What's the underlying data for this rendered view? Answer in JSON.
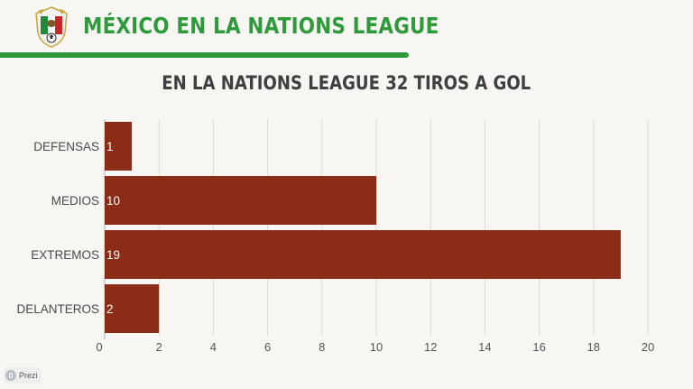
{
  "header": {
    "title": "MÉXICO EN LA NATIONS LEAGUE",
    "brand_color": "#2f9a3c"
  },
  "logo": {
    "icon": "mexico-federation-crest-icon"
  },
  "footer": {
    "prezi_label": "Prezi",
    "icon": "prezi-icon"
  },
  "chart_data": {
    "type": "bar",
    "orientation": "horizontal",
    "title": "EN LA NATIONS LEAGUE 32 TIROS A GOL",
    "categories": [
      "DEFENSAS",
      "MEDIOS",
      "EXTREMOS",
      "DELANTEROS"
    ],
    "values": [
      1,
      10,
      19,
      2
    ],
    "data_labels": [
      "1",
      "10",
      "19",
      "2"
    ],
    "xlim": [
      0,
      20
    ],
    "xticks": [
      0,
      2,
      4,
      6,
      8,
      10,
      12,
      14,
      16,
      18,
      20
    ],
    "xlabel": "",
    "ylabel": "",
    "grid": "vertical",
    "legend": "none",
    "bar_color": "#8b2c16"
  }
}
